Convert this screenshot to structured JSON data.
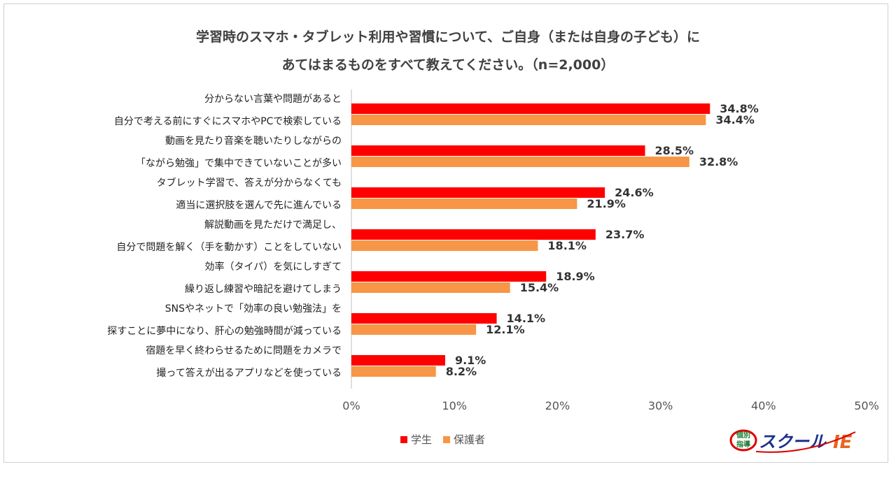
{
  "chart_data": {
    "type": "bar",
    "orientation": "horizontal",
    "title_lines": [
      "学習時のスマホ・タブレット利用や習慣について、ご自身（または自身の子ども）に",
      "あてはまるものをすべて教えてください。（n=2,000）"
    ],
    "categories": [
      [
        "分からない言葉や問題があると",
        "自分で考える前にすぐにスマホやPCで検索している"
      ],
      [
        "動画を見たり音楽を聴いたりしながらの",
        "「ながら勉強」で集中できていないことが多い"
      ],
      [
        "タブレット学習で、答えが分からなくても",
        "適当に選択肢を選んで先に進んでいる"
      ],
      [
        "解説動画を見ただけで満足し、",
        "自分で問題を解く（手を動かす）ことをしていない"
      ],
      [
        "効率（タイパ）を気にしすぎて",
        "繰り返し練習や暗記を避けてしまう"
      ],
      [
        "SNSやネットで「効率の良い勉強法」を",
        "探すことに夢中になり、肝心の勉強時間が減っている"
      ],
      [
        "宿題を早く終わらせるために問題をカメラで",
        "撮って答えが出るアプリなどを使っている"
      ]
    ],
    "series": [
      {
        "name": "学生",
        "color": "#FF0000",
        "values": [
          34.8,
          28.5,
          24.6,
          23.7,
          18.9,
          14.1,
          9.1
        ],
        "labels": [
          "34.8%",
          "28.5%",
          "24.6%",
          "23.7%",
          "18.9%",
          "14.1%",
          "9.1%"
        ]
      },
      {
        "name": "保護者",
        "color": "#F79646",
        "values": [
          34.4,
          32.8,
          21.9,
          18.1,
          15.4,
          12.1,
          8.2
        ],
        "labels": [
          "34.4%",
          "32.8%",
          "21.9%",
          "18.1%",
          "15.4%",
          "12.1%",
          "8.2%"
        ]
      }
    ],
    "xlim": [
      0,
      50
    ],
    "xticks": [
      "0%",
      "10%",
      "20%",
      "30%",
      "40%",
      "50%"
    ],
    "grid": false,
    "legend_position": "bottom"
  },
  "logo": {
    "text": "個別指導 スクールIE"
  }
}
